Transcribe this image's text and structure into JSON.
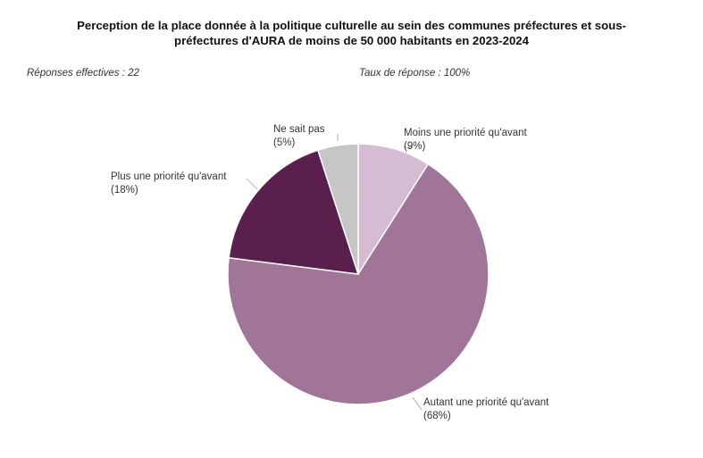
{
  "chart_data": {
    "type": "pie",
    "title_lines": [
      "Perception de la place donnée à la politique culturelle au sein des communes préfectures et sous-",
      "préfectures d'AURA de moins de 50 000 habitants en 2023-2024"
    ],
    "meta": {
      "responses": "Réponses effectives : 22",
      "rate": "Taux de réponse : 100%"
    },
    "slices": [
      {
        "label": "Moins une priorité qu'avant",
        "pct_label": "(9%)",
        "value": 9,
        "color": "#d5bcd2"
      },
      {
        "label": "Autant une priorité qu'avant",
        "pct_label": "(68%)",
        "value": 68,
        "color": "#a17597"
      },
      {
        "label": "Plus une priorité qu'avant",
        "pct_label": "(18%)",
        "value": 18,
        "color": "#5a1f4c"
      },
      {
        "label": "Ne sait pas",
        "pct_label": "(5%)",
        "value": 5,
        "color": "#c6c6c6"
      }
    ],
    "start": "top",
    "direction": "clockwise"
  }
}
